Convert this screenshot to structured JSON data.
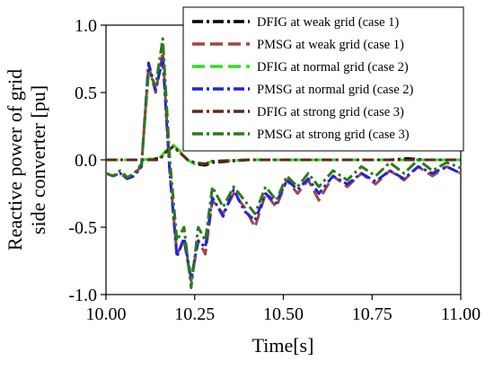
{
  "chart_data": {
    "type": "line",
    "xlabel": "Time[s]",
    "ylabel_lines": [
      "Reactive power of grid",
      "side converter [pu]"
    ],
    "xlim": [
      10.0,
      11.0
    ],
    "ylim": [
      -1.0,
      1.0
    ],
    "x_ticks": [
      "10.00",
      "10.25",
      "10.50",
      "10.75",
      "11.00"
    ],
    "y_ticks": [
      "-1.0",
      "-0.5",
      "0.0",
      "0.5",
      "1.0"
    ],
    "grid": false,
    "legend_position": "top-right",
    "series": [
      {
        "name": "DFIG at weak grid (case 1)",
        "color": "#000000",
        "dash": "dashdot",
        "x": [
          10.0,
          10.1,
          10.15,
          10.17,
          10.19,
          10.21,
          10.23,
          10.25,
          10.28,
          10.3,
          10.4,
          10.6,
          10.8,
          10.85,
          10.9,
          11.0
        ],
        "y": [
          0.0,
          0.0,
          0.01,
          0.06,
          0.1,
          0.05,
          0.0,
          -0.03,
          -0.04,
          -0.02,
          0.0,
          0.0,
          0.0,
          0.01,
          0.0,
          0.0
        ]
      },
      {
        "name": "PMSG at weak grid (case 1)",
        "color": "#a0473f",
        "dash": "dash",
        "x": [
          10.0,
          10.02,
          10.04,
          10.06,
          10.08,
          10.1,
          10.12,
          10.14,
          10.16,
          10.18,
          10.2,
          10.22,
          10.24,
          10.26,
          10.28,
          10.3,
          10.33,
          10.36,
          10.39,
          10.42,
          10.45,
          10.48,
          10.51,
          10.54,
          10.57,
          10.6,
          10.64,
          10.68,
          10.72,
          10.76,
          10.8,
          10.84,
          10.88,
          10.92,
          10.96,
          11.0
        ],
        "y": [
          -0.1,
          -0.12,
          -0.1,
          -0.14,
          -0.1,
          -0.05,
          0.7,
          0.5,
          0.8,
          -0.1,
          -0.7,
          -0.6,
          -0.9,
          -0.6,
          -0.7,
          -0.3,
          -0.4,
          -0.25,
          -0.35,
          -0.5,
          -0.25,
          -0.35,
          -0.15,
          -0.25,
          -0.15,
          -0.3,
          -0.12,
          -0.2,
          -0.1,
          -0.18,
          -0.08,
          -0.15,
          -0.05,
          -0.12,
          -0.05,
          -0.1
        ]
      },
      {
        "name": "DFIG at normal grid (case 2)",
        "color": "#33dd22",
        "dash": "dash",
        "x": [
          10.0,
          10.1,
          10.15,
          10.17,
          10.19,
          10.21,
          10.23,
          10.25,
          10.28,
          10.3,
          10.4,
          10.6,
          10.8,
          10.9,
          11.0
        ],
        "y": [
          0.0,
          0.0,
          0.01,
          0.07,
          0.11,
          0.06,
          0.0,
          -0.03,
          -0.03,
          -0.01,
          0.0,
          0.0,
          0.0,
          0.0,
          0.0
        ]
      },
      {
        "name": "PMSG at normal grid (case 2)",
        "color": "#2222dd",
        "dash": "dashdot",
        "x": [
          10.0,
          10.02,
          10.04,
          10.06,
          10.08,
          10.1,
          10.12,
          10.14,
          10.16,
          10.18,
          10.2,
          10.22,
          10.24,
          10.26,
          10.28,
          10.3,
          10.33,
          10.36,
          10.39,
          10.42,
          10.45,
          10.48,
          10.51,
          10.54,
          10.57,
          10.6,
          10.64,
          10.68,
          10.72,
          10.76,
          10.8,
          10.84,
          10.88,
          10.92,
          10.96,
          11.0
        ],
        "y": [
          -0.1,
          -0.12,
          -0.1,
          -0.14,
          -0.12,
          -0.05,
          0.72,
          0.52,
          0.75,
          -0.1,
          -0.72,
          -0.58,
          -0.88,
          -0.6,
          -0.65,
          -0.28,
          -0.42,
          -0.22,
          -0.38,
          -0.45,
          -0.25,
          -0.32,
          -0.15,
          -0.22,
          -0.14,
          -0.25,
          -0.12,
          -0.18,
          -0.1,
          -0.16,
          -0.08,
          -0.14,
          -0.05,
          -0.1,
          -0.05,
          -0.1
        ]
      },
      {
        "name": "DFIG at strong grid (case 3)",
        "color": "#5a2a1a",
        "dash": "dashdot",
        "x": [
          10.0,
          10.1,
          10.15,
          10.17,
          10.19,
          10.21,
          10.23,
          10.25,
          10.28,
          10.3,
          10.4,
          10.6,
          10.8,
          10.9,
          11.0
        ],
        "y": [
          0.0,
          0.0,
          0.0,
          0.06,
          0.1,
          0.05,
          0.0,
          -0.02,
          -0.03,
          -0.01,
          0.0,
          0.0,
          0.0,
          0.0,
          0.0
        ]
      },
      {
        "name": "PMSG at strong grid (case 3)",
        "color": "#2a7a1a",
        "dash": "dashdot",
        "x": [
          10.0,
          10.02,
          10.04,
          10.06,
          10.08,
          10.1,
          10.12,
          10.14,
          10.16,
          10.18,
          10.2,
          10.22,
          10.24,
          10.26,
          10.28,
          10.3,
          10.33,
          10.36,
          10.39,
          10.42,
          10.45,
          10.48,
          10.51,
          10.54,
          10.57,
          10.6,
          10.64,
          10.68,
          10.72,
          10.76,
          10.8,
          10.84,
          10.88,
          10.92,
          10.96,
          11.0
        ],
        "y": [
          -0.1,
          -0.12,
          -0.08,
          -0.13,
          -0.1,
          -0.03,
          0.65,
          0.55,
          0.9,
          0.0,
          -0.6,
          -0.5,
          -0.95,
          -0.5,
          -0.6,
          -0.2,
          -0.35,
          -0.2,
          -0.3,
          -0.4,
          -0.2,
          -0.3,
          -0.12,
          -0.2,
          -0.1,
          -0.2,
          -0.08,
          -0.15,
          -0.05,
          -0.12,
          -0.02,
          -0.1,
          0.0,
          -0.08,
          -0.02,
          -0.06
        ]
      }
    ]
  }
}
